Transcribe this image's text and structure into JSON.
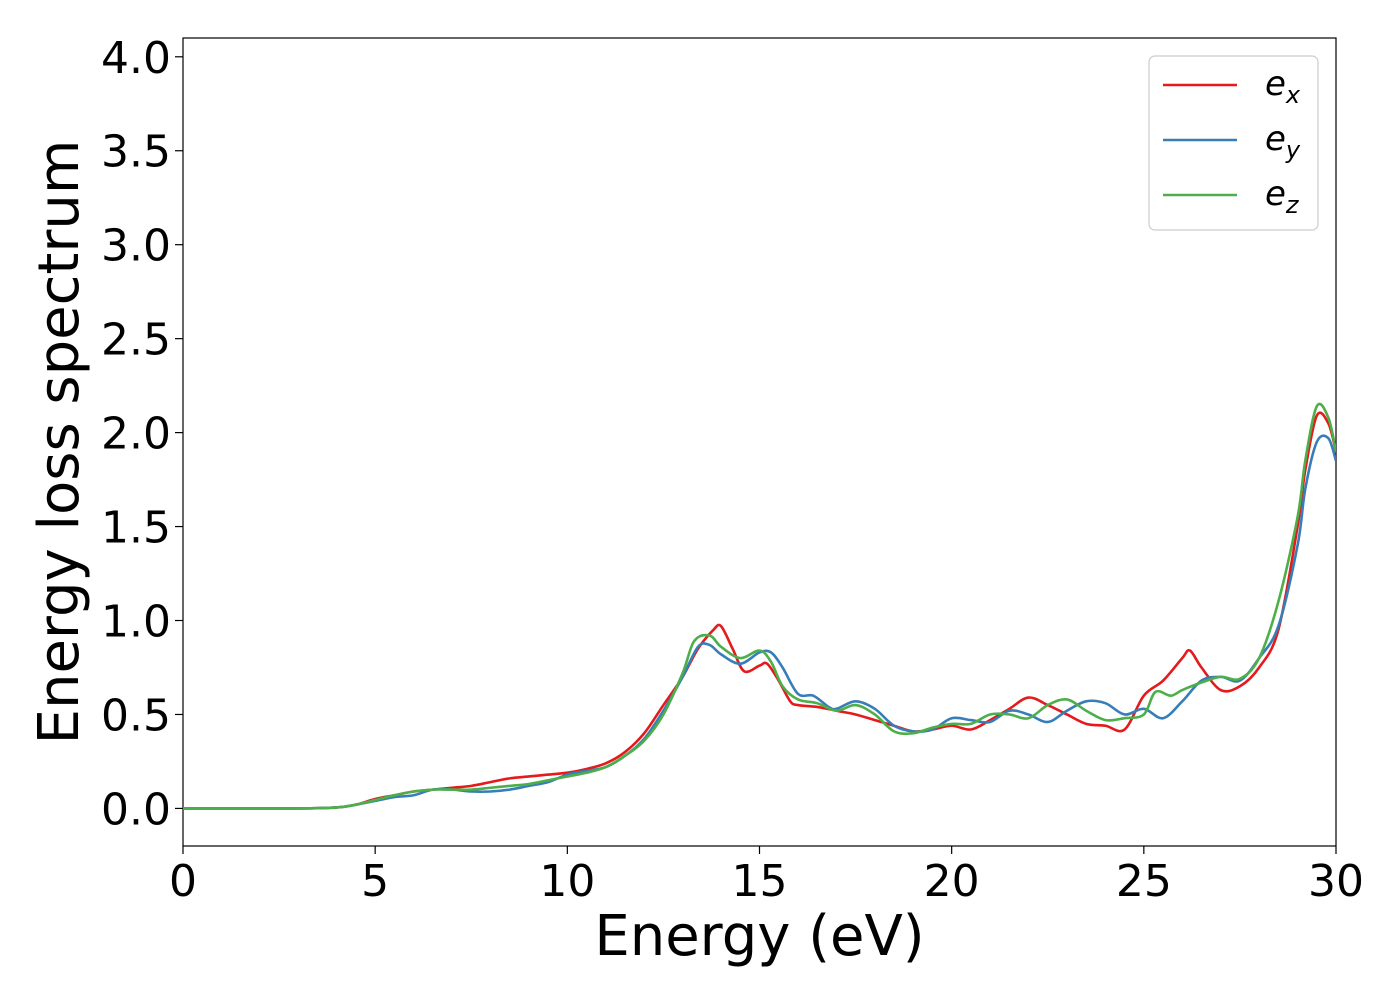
{
  "chart_data": {
    "type": "line",
    "xlabel": "Energy (eV)",
    "ylabel": "Energy loss spectrum",
    "xlim": [
      0,
      30
    ],
    "ylim": [
      -0.2,
      4.1
    ],
    "xticks": [
      0,
      5,
      10,
      15,
      20,
      25,
      30
    ],
    "xtick_labels": [
      "0",
      "5",
      "10",
      "15",
      "20",
      "25",
      "30"
    ],
    "yticks": [
      0.0,
      0.5,
      1.0,
      1.5,
      2.0,
      2.5,
      3.0,
      3.5,
      4.0
    ],
    "ytick_labels": [
      "0.0",
      "0.5",
      "1.0",
      "1.5",
      "2.0",
      "2.5",
      "3.0",
      "3.5",
      "4.0"
    ],
    "grid": false,
    "legend_position": "top-right",
    "series": [
      {
        "name": "e",
        "subscript": "x",
        "color": "#e41a1c",
        "x": [
          0,
          3,
          4,
          4.5,
          5,
          5.5,
          6,
          6.5,
          7,
          7.5,
          8,
          8.5,
          9,
          9.5,
          10,
          10.5,
          11,
          11.5,
          12,
          12.5,
          13,
          13.4,
          13.8,
          14.0,
          14.3,
          14.6,
          15.0,
          15.2,
          15.5,
          15.8,
          16.0,
          16.5,
          17,
          17.5,
          18,
          18.5,
          19,
          19.5,
          20,
          20.5,
          21,
          21.5,
          22,
          22.5,
          23,
          23.5,
          24,
          24.5,
          25,
          25.5,
          26,
          26.2,
          26.5,
          27,
          27.5,
          28,
          28.5,
          29,
          29.2,
          29.5,
          29.8,
          30
        ],
        "y": [
          0,
          0,
          0.005,
          0.02,
          0.05,
          0.07,
          0.09,
          0.1,
          0.11,
          0.12,
          0.14,
          0.16,
          0.17,
          0.18,
          0.19,
          0.21,
          0.24,
          0.3,
          0.4,
          0.55,
          0.7,
          0.85,
          0.95,
          0.97,
          0.85,
          0.73,
          0.76,
          0.77,
          0.68,
          0.57,
          0.55,
          0.54,
          0.52,
          0.5,
          0.47,
          0.44,
          0.41,
          0.42,
          0.44,
          0.42,
          0.47,
          0.53,
          0.59,
          0.55,
          0.5,
          0.45,
          0.44,
          0.42,
          0.6,
          0.68,
          0.8,
          0.84,
          0.75,
          0.63,
          0.65,
          0.75,
          0.95,
          1.5,
          1.8,
          2.09,
          2.05,
          1.9
        ]
      },
      {
        "name": "e",
        "subscript": "y",
        "color": "#377eb8",
        "x": [
          0,
          3,
          4,
          4.5,
          5,
          5.5,
          6,
          6.5,
          7,
          7.5,
          8,
          8.5,
          9,
          9.5,
          10,
          10.5,
          11,
          11.5,
          12,
          12.5,
          13,
          13.4,
          13.7,
          14.0,
          14.5,
          15.0,
          15.3,
          15.6,
          16.0,
          16.4,
          16.8,
          17,
          17.5,
          18,
          18.5,
          19,
          19.5,
          20,
          20.5,
          21,
          21.5,
          22,
          22.5,
          23,
          23.5,
          24,
          24.5,
          25,
          25.5,
          26,
          26.5,
          27,
          27.5,
          28,
          28.5,
          29,
          29.2,
          29.5,
          29.8,
          30
        ],
        "y": [
          0,
          0,
          0.005,
          0.02,
          0.04,
          0.06,
          0.07,
          0.1,
          0.1,
          0.09,
          0.09,
          0.1,
          0.12,
          0.14,
          0.18,
          0.2,
          0.22,
          0.28,
          0.37,
          0.52,
          0.7,
          0.86,
          0.87,
          0.82,
          0.77,
          0.83,
          0.83,
          0.75,
          0.61,
          0.6,
          0.54,
          0.53,
          0.57,
          0.53,
          0.44,
          0.41,
          0.42,
          0.48,
          0.47,
          0.46,
          0.52,
          0.5,
          0.46,
          0.52,
          0.57,
          0.56,
          0.5,
          0.53,
          0.48,
          0.57,
          0.68,
          0.7,
          0.68,
          0.8,
          0.97,
          1.4,
          1.7,
          1.95,
          1.97,
          1.85
        ]
      },
      {
        "name": "e",
        "subscript": "z",
        "color": "#4daf4a",
        "x": [
          0,
          3,
          4,
          4.5,
          5,
          5.5,
          6,
          6.5,
          7,
          7.5,
          8,
          8.5,
          9,
          9.5,
          10,
          10.5,
          11,
          11.5,
          12,
          12.5,
          13,
          13.3,
          13.7,
          14.0,
          14.5,
          15.0,
          15.3,
          15.6,
          16.0,
          16.5,
          17,
          17.5,
          18,
          18.5,
          19,
          19.5,
          20,
          20.5,
          21,
          21.5,
          22,
          22.5,
          23,
          23.5,
          24,
          24.5,
          25,
          25.3,
          25.7,
          26,
          26.5,
          27,
          27.5,
          28,
          28.5,
          29,
          29.2,
          29.5,
          29.8,
          30
        ],
        "y": [
          0,
          0,
          0.005,
          0.02,
          0.045,
          0.07,
          0.09,
          0.1,
          0.1,
          0.1,
          0.11,
          0.12,
          0.13,
          0.15,
          0.17,
          0.19,
          0.22,
          0.28,
          0.36,
          0.5,
          0.72,
          0.89,
          0.92,
          0.86,
          0.8,
          0.84,
          0.78,
          0.65,
          0.58,
          0.56,
          0.52,
          0.55,
          0.5,
          0.41,
          0.4,
          0.43,
          0.45,
          0.45,
          0.5,
          0.5,
          0.48,
          0.55,
          0.58,
          0.52,
          0.47,
          0.48,
          0.5,
          0.62,
          0.6,
          0.63,
          0.67,
          0.7,
          0.69,
          0.8,
          1.1,
          1.55,
          1.85,
          2.14,
          2.08,
          1.9
        ]
      }
    ]
  }
}
